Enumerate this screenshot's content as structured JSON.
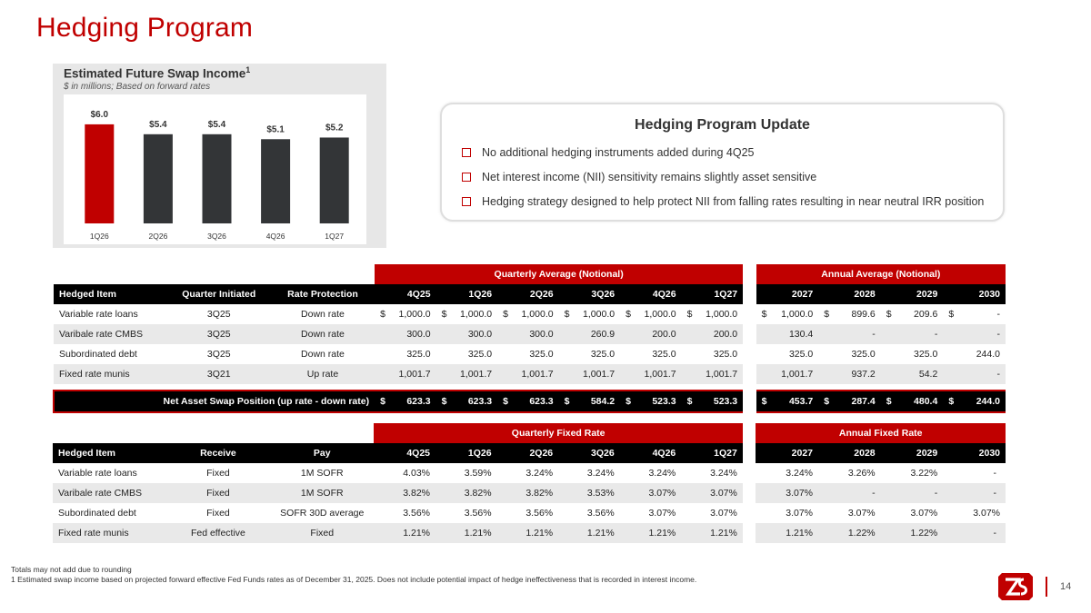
{
  "page": {
    "title": "Hedging Program",
    "page_number": "14",
    "footnotes": [
      "Totals may not add due to rounding",
      "1 Estimated swap income based on projected forward effective Fed Funds rates as of December 31, 2025. Does not include potential impact of hedge ineffectiveness that is recorded in interest income."
    ]
  },
  "chart_data": {
    "type": "bar",
    "title": "Estimated Future Swap Income",
    "title_superscript": "1",
    "subtitle": "$ in millions; Based on forward rates",
    "categories": [
      "1Q26",
      "2Q26",
      "3Q26",
      "4Q26",
      "1Q27"
    ],
    "values": [
      6.0,
      5.4,
      5.4,
      5.1,
      5.2
    ],
    "data_labels": [
      "$6.0",
      "$5.4",
      "$5.4",
      "$5.1",
      "$5.2"
    ],
    "bar_colors": [
      "#c00000",
      "#333537",
      "#333537",
      "#333537",
      "#333537"
    ],
    "ylim": [
      0,
      6.6
    ],
    "xlabel": "",
    "ylabel": "",
    "grid": false
  },
  "update_box": {
    "title": "Hedging Program Update",
    "bullets": [
      "No additional hedging instruments added during 4Q25",
      "Net interest income (NII) sensitivity remains slightly asset sensitive",
      "Hedging strategy designed to help protect NII from falling rates resulting in near neutral IRR position"
    ]
  },
  "notional_table": {
    "group_quarterly": "Quarterly Average (Notional)",
    "group_annual": "Annual Average (Notional)",
    "headers": [
      "Hedged Item",
      "Quarter Initiated",
      "Rate Protection",
      "4Q25",
      "1Q26",
      "2Q26",
      "3Q26",
      "4Q26",
      "1Q27",
      "2027",
      "2028",
      "2029",
      "2030"
    ],
    "rows": [
      {
        "item": "Variable rate loans",
        "initiated": "3Q25",
        "protection": "Down rate",
        "dollar": true,
        "values": [
          "1,000.0",
          "1,000.0",
          "1,000.0",
          "1,000.0",
          "1,000.0",
          "1,000.0",
          "1,000.0",
          "899.6",
          "209.6",
          "-"
        ]
      },
      {
        "item": "Varibale rate CMBS",
        "initiated": "3Q25",
        "protection": "Down rate",
        "dollar": false,
        "values": [
          "300.0",
          "300.0",
          "300.0",
          "260.9",
          "200.0",
          "200.0",
          "130.4",
          "-",
          "-",
          "-"
        ]
      },
      {
        "item": "Subordinated debt",
        "initiated": "3Q25",
        "protection": "Down rate",
        "dollar": false,
        "values": [
          "325.0",
          "325.0",
          "325.0",
          "325.0",
          "325.0",
          "325.0",
          "325.0",
          "325.0",
          "325.0",
          "244.0"
        ]
      },
      {
        "item": "Fixed rate munis",
        "initiated": "3Q21",
        "protection": "Up rate",
        "dollar": false,
        "values": [
          "1,001.7",
          "1,001.7",
          "1,001.7",
          "1,001.7",
          "1,001.7",
          "1,001.7",
          "1,001.7",
          "937.2",
          "54.2",
          "-"
        ]
      }
    ],
    "net_label": "Net Asset Swap Position (up rate - down rate)",
    "net_values": [
      "623.3",
      "623.3",
      "623.3",
      "584.2",
      "523.3",
      "523.3",
      "453.7",
      "287.4",
      "480.4",
      "244.0"
    ],
    "currency_symbol": "$"
  },
  "rate_table": {
    "group_quarterly": "Quarterly Fixed Rate",
    "group_annual": "Annual Fixed Rate",
    "headers": [
      "Hedged Item",
      "Receive",
      "Pay",
      "4Q25",
      "1Q26",
      "2Q26",
      "3Q26",
      "4Q26",
      "1Q27",
      "2027",
      "2028",
      "2029",
      "2030"
    ],
    "rows": [
      {
        "item": "Variable rate loans",
        "receive": "Fixed",
        "pay": "1M SOFR",
        "values": [
          "4.03%",
          "3.59%",
          "3.24%",
          "3.24%",
          "3.24%",
          "3.24%",
          "3.24%",
          "3.26%",
          "3.22%",
          "-"
        ]
      },
      {
        "item": "Varibale rate CMBS",
        "receive": "Fixed",
        "pay": "1M SOFR",
        "values": [
          "3.82%",
          "3.82%",
          "3.82%",
          "3.53%",
          "3.07%",
          "3.07%",
          "3.07%",
          "-",
          "-",
          "-"
        ]
      },
      {
        "item": "Subordinated debt",
        "receive": "Fixed",
        "pay": "SOFR 30D average",
        "values": [
          "3.56%",
          "3.56%",
          "3.56%",
          "3.56%",
          "3.07%",
          "3.07%",
          "3.07%",
          "3.07%",
          "3.07%",
          "3.07%"
        ]
      },
      {
        "item": "Fixed rate munis",
        "receive": "Fed effective",
        "pay": "Fixed",
        "values": [
          "1.21%",
          "1.21%",
          "1.21%",
          "1.21%",
          "1.21%",
          "1.21%",
          "1.21%",
          "1.22%",
          "1.22%",
          "-"
        ]
      }
    ]
  },
  "colors": {
    "accent": "#c00000",
    "dark_bar": "#333537",
    "header_bg": "#000000",
    "alt_row": "#e9e9e9"
  },
  "logo": {
    "icon": "zions-logo-icon"
  }
}
